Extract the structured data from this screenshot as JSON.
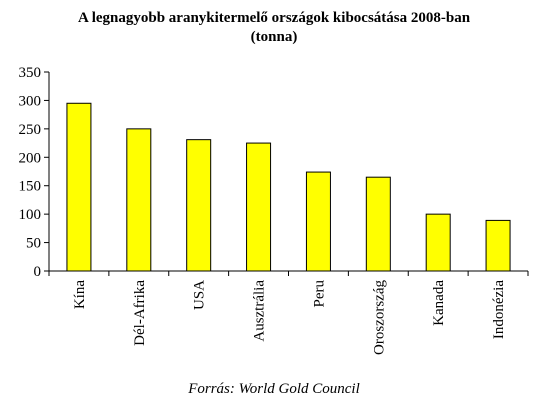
{
  "chart_data": {
    "type": "bar",
    "title": "A legnagyobb aranykitermelő országok kibocsátása 2008-ban",
    "subtitle": "(tonna)",
    "categories": [
      "Kína",
      "Dél-Afrika",
      "USA",
      "Ausztrália",
      "Peru",
      "Oroszország",
      "Kanada",
      "Indonézia"
    ],
    "values": [
      295,
      250,
      231,
      225,
      174,
      165,
      100,
      89
    ],
    "ylim": [
      0,
      350
    ],
    "yticks": [
      0,
      50,
      100,
      150,
      200,
      250,
      300,
      350
    ],
    "xlabel": "",
    "ylabel": "",
    "grid": false,
    "legend": "none",
    "bar_color": "#ffff00",
    "source": "Forrás: World Gold Council"
  }
}
